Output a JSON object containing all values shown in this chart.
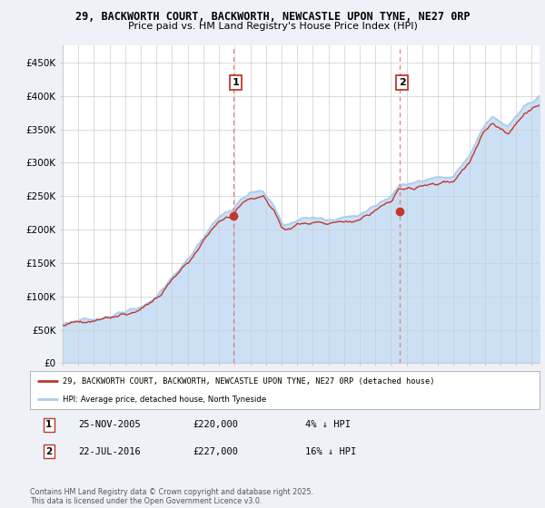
{
  "title_line1": "29, BACKWORTH COURT, BACKWORTH, NEWCASTLE UPON TYNE, NE27 0RP",
  "title_line2": "Price paid vs. HM Land Registry's House Price Index (HPI)",
  "ylabel_ticks": [
    "£0",
    "£50K",
    "£100K",
    "£150K",
    "£200K",
    "£250K",
    "£300K",
    "£350K",
    "£400K",
    "£450K"
  ],
  "ytick_vals": [
    0,
    50000,
    100000,
    150000,
    200000,
    250000,
    300000,
    350000,
    400000,
    450000
  ],
  "ylim": [
    0,
    475000
  ],
  "xlim_start": 1995.0,
  "xlim_end": 2025.5,
  "hpi_color": "#aaccee",
  "hpi_fill_color": "#cce0f5",
  "price_color": "#c0392b",
  "annotation1_label": "1",
  "annotation2_label": "2",
  "vline1_x": 2005.9,
  "vline2_x": 2016.55,
  "vline_color": "#e08080",
  "sale1_x": 2005.9,
  "sale1_y": 220000,
  "sale2_x": 2016.55,
  "sale2_y": 227000,
  "legend_line1": "29, BACKWORTH COURT, BACKWORTH, NEWCASTLE UPON TYNE, NE27 0RP (detached house)",
  "legend_line2": "HPI: Average price, detached house, North Tyneside",
  "table_row1": [
    "1",
    "25-NOV-2005",
    "£220,000",
    "4% ↓ HPI"
  ],
  "table_row2": [
    "2",
    "22-JUL-2016",
    "£227,000",
    "16% ↓ HPI"
  ],
  "footer": "Contains HM Land Registry data © Crown copyright and database right 2025.\nThis data is licensed under the Open Government Licence v3.0.",
  "background_color": "#eef2f8",
  "plot_bg_color": "#ffffff"
}
